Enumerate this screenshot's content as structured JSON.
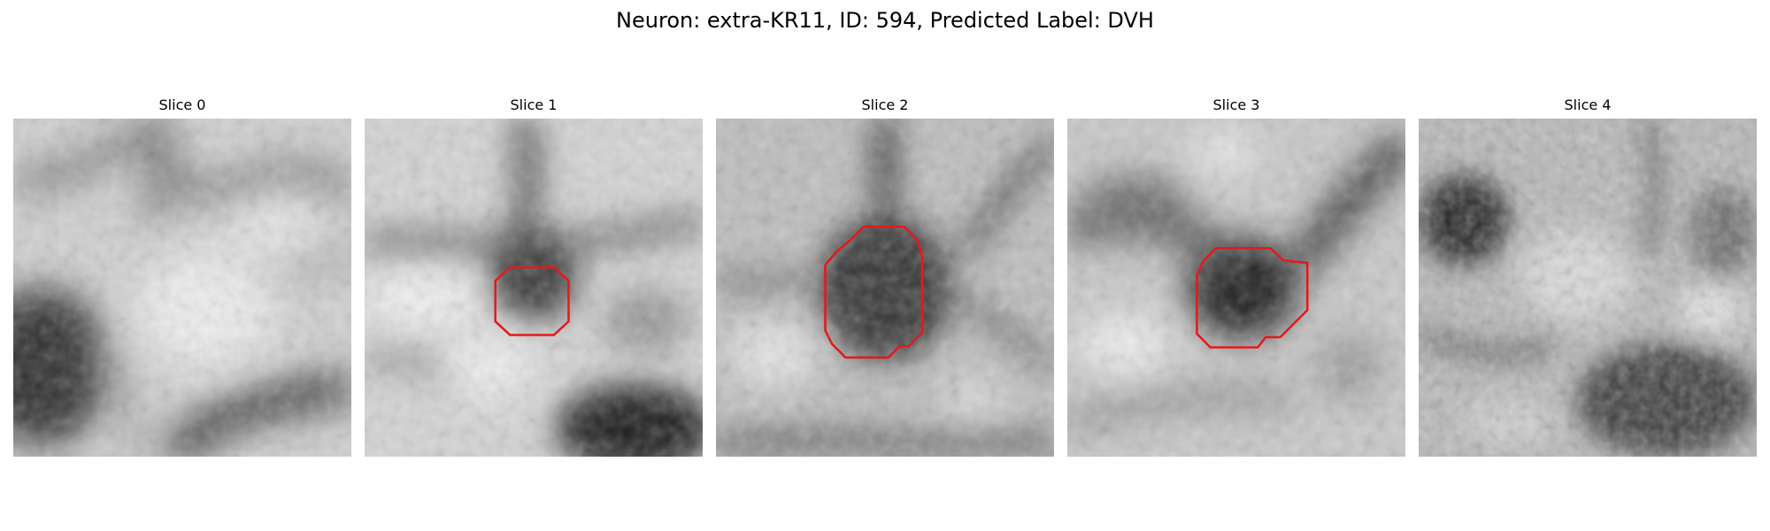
{
  "figure": {
    "title": "Neuron: extra-KR11, ID: 594, Predicted Label: DVH"
  },
  "outline_color": "#e31a1c",
  "panels": [
    {
      "title": "Slice 0",
      "has_outline": false
    },
    {
      "title": "Slice 1",
      "has_outline": true
    },
    {
      "title": "Slice 2",
      "has_outline": true
    },
    {
      "title": "Slice 3",
      "has_outline": true
    },
    {
      "title": "Slice 4",
      "has_outline": false
    }
  ]
}
